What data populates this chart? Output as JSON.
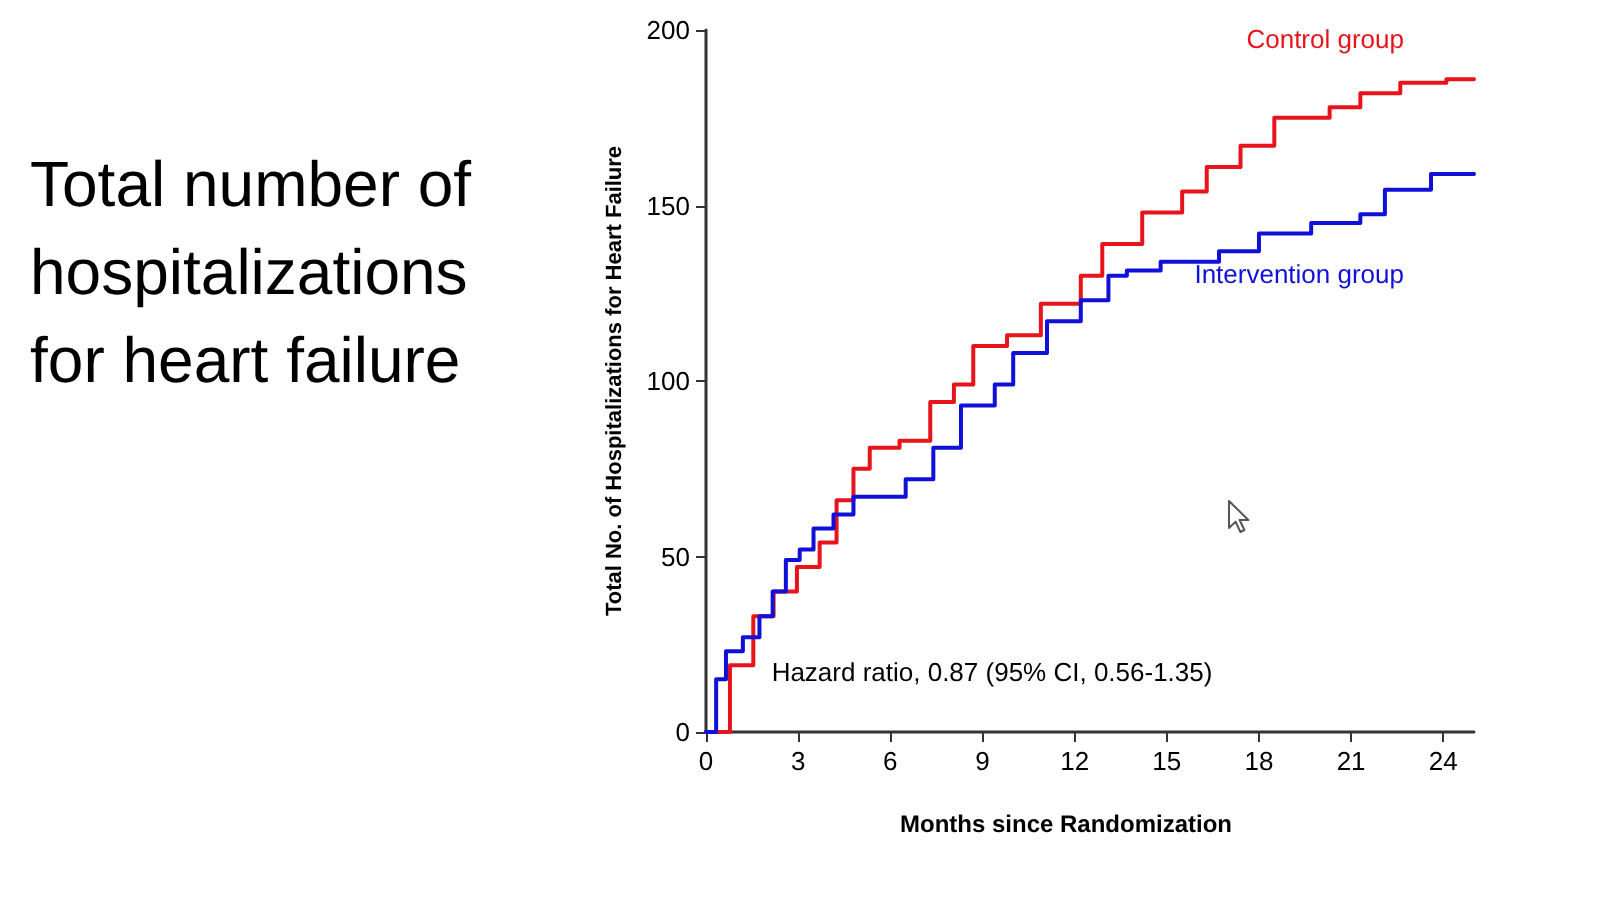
{
  "chart_data": {
    "type": "step",
    "title": "Total number of hospitalizations for heart failure",
    "xlabel": "Months since Randomization",
    "ylabel": "Total No. of Hospitalizations for Heart Failure",
    "annotations": [
      "Hazard ratio, 0.87 (95% CI, 0.56-1.35)"
    ],
    "xlim": [
      0,
      25
    ],
    "xticks": [
      0,
      3,
      6,
      9,
      12,
      15,
      18,
      21,
      24
    ],
    "ylim": [
      0,
      200
    ],
    "yticks": [
      0,
      50,
      100,
      150,
      200
    ],
    "grid": false,
    "legend": false,
    "marker": "none",
    "line_style": "solid",
    "series": [
      {
        "name": "Control group",
        "color": "#e8141c",
        "x": [
          0,
          0.78,
          1.54,
          2.2,
          2.96,
          3.7,
          4.25,
          4.8,
          5.33,
          6.3,
          7.3,
          8.07,
          8.7,
          9.8,
          10.9,
          12.2,
          12.9,
          14.2,
          15.5,
          16.3,
          17.4,
          18.5,
          20.3,
          21.3,
          22.6,
          24.1,
          25
        ],
        "values": [
          0,
          19,
          33,
          40,
          47,
          54,
          66,
          75,
          81,
          83,
          94,
          99,
          110,
          113,
          122,
          130,
          139,
          148,
          154,
          161,
          167,
          175,
          178,
          182,
          185,
          186,
          186
        ]
      },
      {
        "name": "Intervention group",
        "color": "#1010d8",
        "x": [
          0,
          0.33,
          0.65,
          1.2,
          1.74,
          2.17,
          2.6,
          3.05,
          3.5,
          4.15,
          4.8,
          5.6,
          6.5,
          7.4,
          8.3,
          9.4,
          10,
          11.1,
          12.2,
          13.1,
          13.7,
          14.8,
          16.1,
          16.7,
          18,
          19.7,
          21.3,
          22.1,
          23.6,
          25
        ],
        "values": [
          0,
          15,
          23,
          27,
          33,
          40,
          49,
          52,
          58,
          62,
          67,
          67,
          72,
          81,
          93,
          99,
          108,
          117,
          123,
          130,
          131.5,
          134,
          134,
          137,
          142,
          145,
          147.5,
          154.5,
          159,
          159
        ]
      }
    ]
  }
}
